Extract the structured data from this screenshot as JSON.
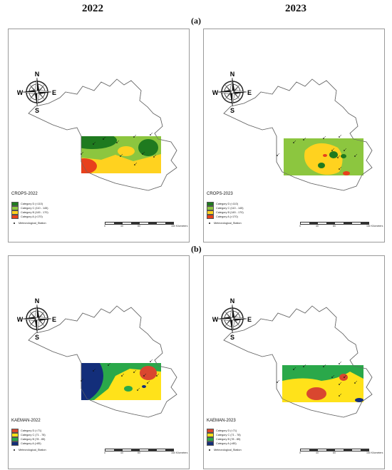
{
  "figure": {
    "col_left_label": "2022",
    "col_right_label": "2023",
    "row_a_label": "(a)",
    "row_b_label": "(b)"
  },
  "compass": {
    "n": "N",
    "s": "S",
    "e": "E",
    "w": "W"
  },
  "scale": {
    "ticks": [
      "0",
      "40",
      "80",
      "160 Kilometers"
    ]
  },
  "panels": [
    {
      "id": "crops-2022",
      "title": "CROPS-2022",
      "legend": [
        {
          "label": "Category D (<110)",
          "color": "#1f7a1f"
        },
        {
          "label": "Category C (110 - 145)",
          "color": "#8cc63f"
        },
        {
          "label": "Category B (145 - 170)",
          "color": "#ffd21f"
        },
        {
          "label": "Category A (>170)",
          "color": "#e8401c"
        }
      ],
      "station_label": "Meteorological_Station"
    },
    {
      "id": "crops-2023",
      "title": "CROPS-2023",
      "legend": [
        {
          "label": "Category D (<110)",
          "color": "#1f7a1f"
        },
        {
          "label": "Category C (110 - 145)",
          "color": "#8cc63f"
        },
        {
          "label": "Category B (145 - 170)",
          "color": "#ffd21f"
        },
        {
          "label": "Category A (>170)",
          "color": "#e8401c"
        }
      ],
      "station_label": "Meteorological_Station"
    },
    {
      "id": "kaeman-2022",
      "title": "KAEMAN-2022",
      "legend": [
        {
          "label": "Category D (<71)",
          "color": "#d9472f"
        },
        {
          "label": "Category C (71 - 78)",
          "color": "#ffe21a"
        },
        {
          "label": "Category B (78 - 85)",
          "color": "#2aa84a"
        },
        {
          "label": "Category A (>85)",
          "color": "#132e7a"
        }
      ],
      "station_label": "Meteorological_Station"
    },
    {
      "id": "kaeman-2023",
      "title": "KAEMAN-2023",
      "legend": [
        {
          "label": "Category D (<71)",
          "color": "#d9472f"
        },
        {
          "label": "Category C (71 - 78)",
          "color": "#ffe21a"
        },
        {
          "label": "Category B (78 - 85)",
          "color": "#2aa84a"
        },
        {
          "label": "Category A (>85)",
          "color": "#132e7a"
        }
      ],
      "station_label": "Meteorological_Station"
    }
  ]
}
